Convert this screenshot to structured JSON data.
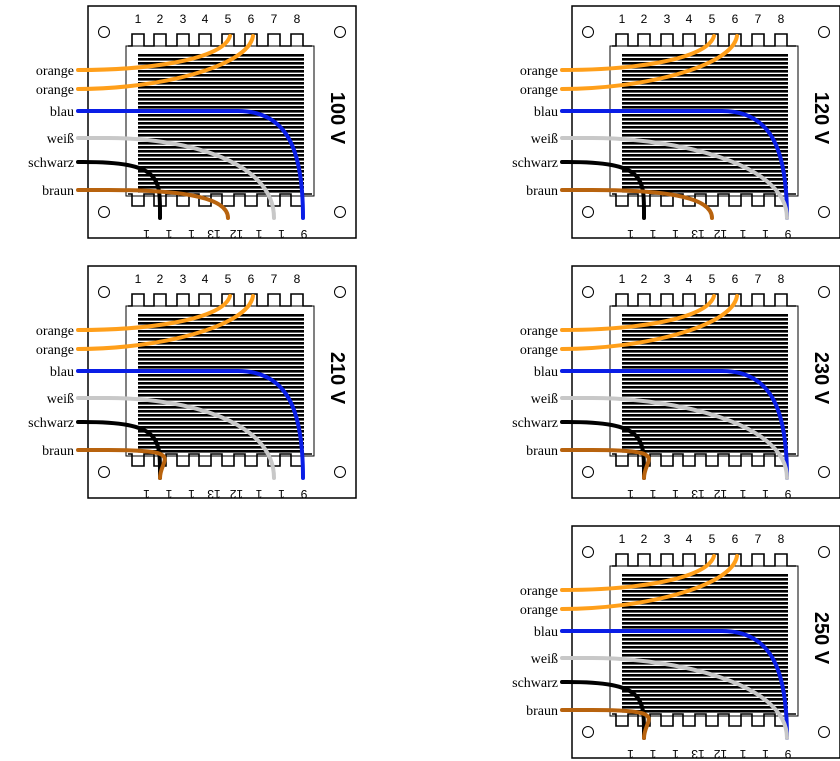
{
  "wires": [
    {
      "label": "orange",
      "color": "#ff9f1a"
    },
    {
      "label": "orange",
      "color": "#ff9f1a"
    },
    {
      "label": "blau",
      "color": "#0a1ee6"
    },
    {
      "label": "weiß",
      "color": "#c8c8c8"
    },
    {
      "label": "schwarz",
      "color": "#000000"
    },
    {
      "label": "braun",
      "color": "#b8630e"
    }
  ],
  "top_pins": [
    "1",
    "2",
    "3",
    "4",
    "5",
    "6",
    "7",
    "8"
  ],
  "bottom_pins": [
    "9",
    "1",
    "1",
    "12",
    "13",
    "1",
    "1",
    "1"
  ],
  "panels": [
    {
      "id": "100v",
      "voltage": "100 V",
      "wire_ends": [
        "5",
        "6",
        "9",
        "1",
        "1",
        "12"
      ]
    },
    {
      "id": "120v",
      "voltage": "120 V",
      "wire_ends": [
        "5",
        "6",
        "9",
        "9",
        "1",
        "12"
      ]
    },
    {
      "id": "210v",
      "voltage": "210 V",
      "wire_ends": [
        "5",
        "6",
        "9",
        "1",
        "1",
        "1"
      ]
    },
    {
      "id": "230v",
      "voltage": "230 V",
      "wire_ends": [
        "5",
        "6",
        "9",
        "9",
        "1",
        "1"
      ]
    },
    {
      "id": "250v",
      "voltage": "250 V",
      "wire_ends": [
        "5",
        "6",
        "9",
        "9",
        "1",
        "1"
      ]
    }
  ],
  "colors": {
    "board": "#ffffff",
    "outline": "#000000",
    "core": "#000000"
  }
}
